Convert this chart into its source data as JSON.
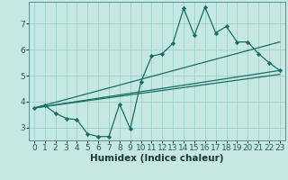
{
  "xlabel": "Humidex (Indice chaleur)",
  "background_color": "#c5e8e5",
  "grid_color": "#9fcfcc",
  "line_color": "#1a6e62",
  "spine_color": "#5a9090",
  "xlim": [
    -0.5,
    23.5
  ],
  "ylim": [
    2.5,
    7.85
  ],
  "xticks": [
    0,
    1,
    2,
    3,
    4,
    5,
    6,
    7,
    8,
    9,
    10,
    11,
    12,
    13,
    14,
    15,
    16,
    17,
    18,
    19,
    20,
    21,
    22,
    23
  ],
  "yticks": [
    3,
    4,
    5,
    6,
    7
  ],
  "main_x": [
    0,
    1,
    2,
    3,
    4,
    5,
    6,
    7,
    8,
    9,
    10,
    11,
    12,
    13,
    14,
    15,
    16,
    17,
    18,
    19,
    20,
    21,
    22,
    23
  ],
  "main_y": [
    3.75,
    3.85,
    3.55,
    3.35,
    3.3,
    2.75,
    2.65,
    2.65,
    3.9,
    2.95,
    4.75,
    5.75,
    5.85,
    6.25,
    7.6,
    6.55,
    7.65,
    6.65,
    6.9,
    6.3,
    6.3,
    5.85,
    5.5,
    5.2
  ],
  "line1_x": [
    0,
    23
  ],
  "line1_y": [
    3.75,
    5.2
  ],
  "line2_x": [
    0,
    23
  ],
  "line2_y": [
    3.75,
    6.3
  ],
  "line3_x": [
    0,
    23
  ],
  "line3_y": [
    3.75,
    5.05
  ],
  "xlabel_fontsize": 7.5,
  "tick_fontsize": 6.5
}
